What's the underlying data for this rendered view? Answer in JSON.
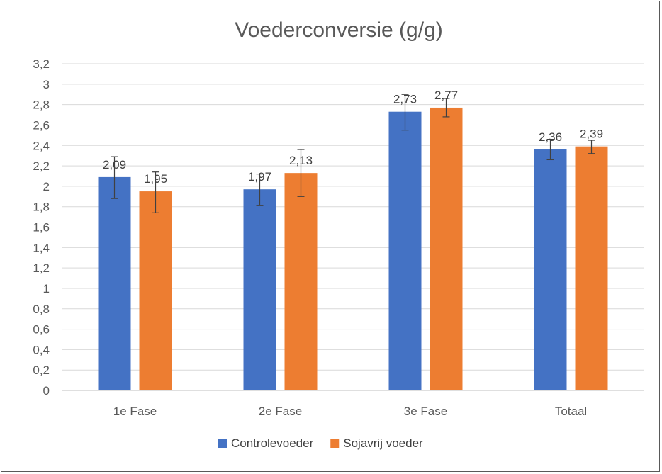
{
  "chart_data": {
    "type": "bar",
    "title": "Voederconversie (g/g)",
    "categories": [
      "1e Fase",
      "2e Fase",
      "3e Fase",
      "Totaal"
    ],
    "series": [
      {
        "name": "Controlevoeder",
        "color": "#4472c4",
        "values": [
          2.09,
          1.97,
          2.73,
          2.36
        ],
        "labels": [
          "2,09",
          "1,97",
          "2,73",
          "2,36"
        ],
        "error_low": [
          1.88,
          1.81,
          2.55,
          2.26
        ],
        "error_high": [
          2.29,
          2.12,
          2.9,
          2.46
        ]
      },
      {
        "name": "Sojavrij voeder",
        "color": "#ed7d31",
        "values": [
          1.95,
          2.13,
          2.77,
          2.39
        ],
        "labels": [
          "1,95",
          "2,13",
          "2,77",
          "2,39"
        ],
        "error_low": [
          1.74,
          1.9,
          2.68,
          2.32
        ],
        "error_high": [
          2.14,
          2.36,
          2.86,
          2.45
        ]
      }
    ],
    "ylim": [
      0,
      3.2
    ],
    "yticks": [
      0,
      0.2,
      0.4,
      0.6,
      0.8,
      1,
      1.2,
      1.4,
      1.6,
      1.8,
      2,
      2.2,
      2.4,
      2.6,
      2.8,
      3,
      3.2
    ],
    "ytick_labels": [
      "0",
      "0,2",
      "0,4",
      "0,6",
      "0,8",
      "1",
      "1,2",
      "1,4",
      "1,6",
      "1,8",
      "2",
      "2,2",
      "2,4",
      "2,6",
      "2,8",
      "3",
      "3,2"
    ],
    "xlabel": "",
    "ylabel": "",
    "grid": true,
    "gridColor": "#d9d9d9",
    "legend": "bottom"
  }
}
